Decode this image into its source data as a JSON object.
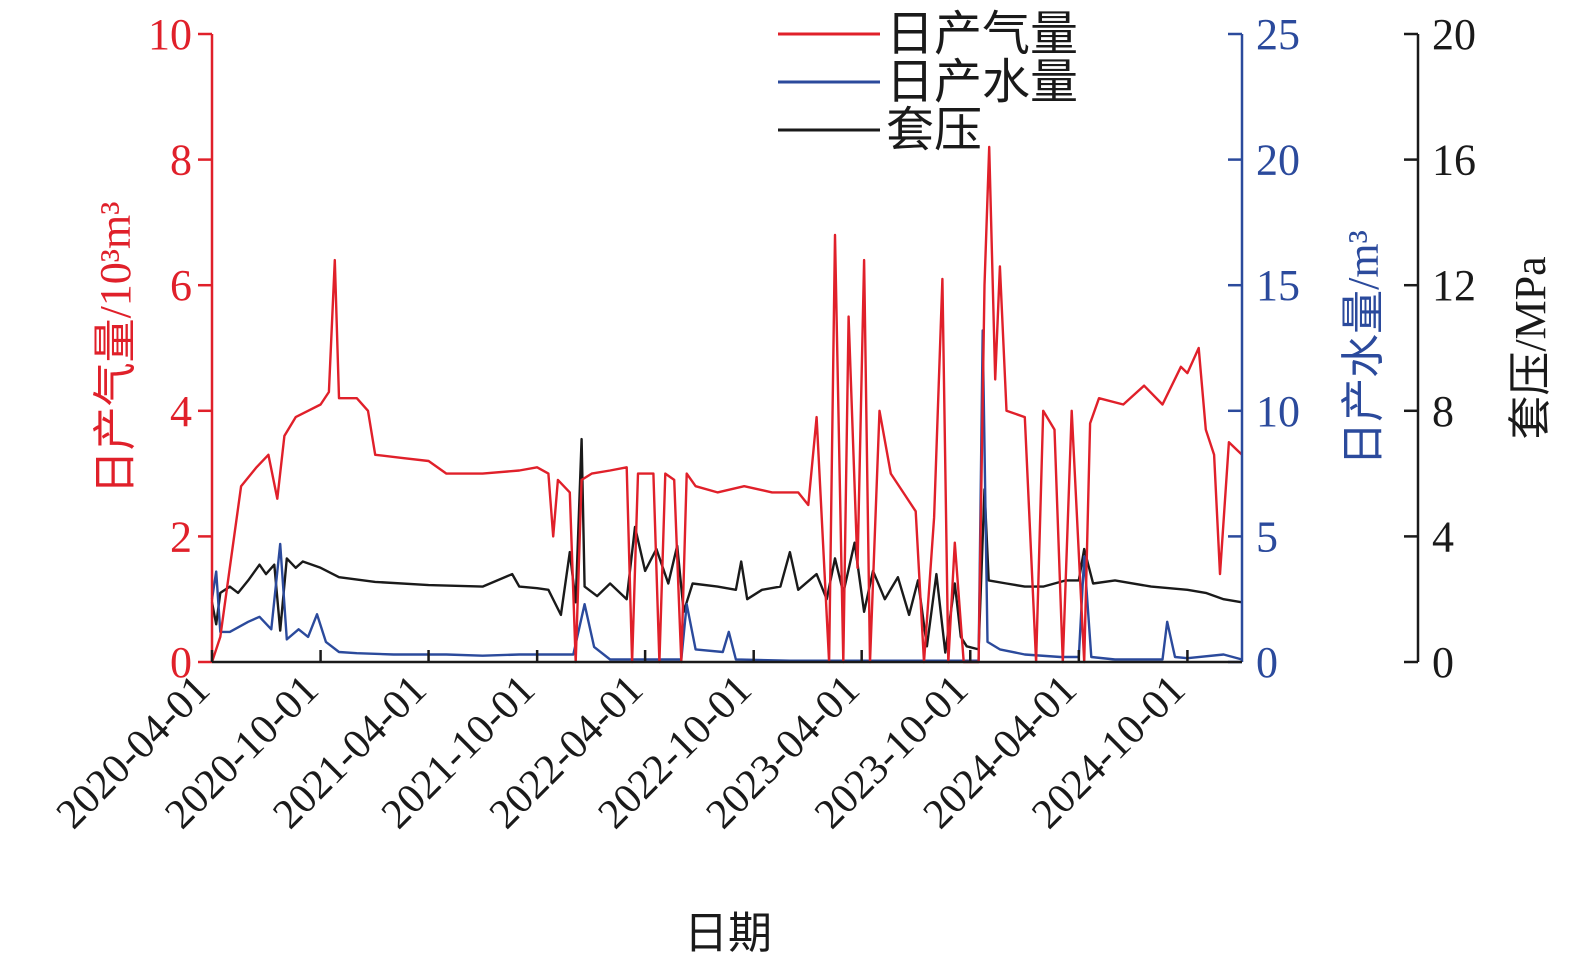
{
  "chart_data": {
    "type": "line",
    "xlabel": "日期",
    "x_ticks": [
      "2020-04-01",
      "2020-10-01",
      "2021-04-01",
      "2021-10-01",
      "2022-04-01",
      "2022-10-01",
      "2023-04-01",
      "2023-10-01",
      "2024-04-01",
      "2024-10-01"
    ],
    "x_range": [
      "2020-04-01",
      "2025-01-01"
    ],
    "axes": {
      "gas": {
        "label": "日产气量/10³m³",
        "ylim": [
          0,
          10
        ],
        "ticks": [
          "0",
          "2",
          "4",
          "6",
          "8",
          "10"
        ],
        "color": "#e0202a",
        "position": "left"
      },
      "water": {
        "label": "日产水量/m³",
        "ylim": [
          0,
          25
        ],
        "ticks": [
          "0",
          "5",
          "10",
          "15",
          "20",
          "25"
        ],
        "color": "#2b4a9c",
        "position": "right-inner"
      },
      "pressure": {
        "label": "套压/MPa",
        "ylim": [
          0,
          20
        ],
        "ticks": [
          "0",
          "4",
          "8",
          "12",
          "16",
          "20"
        ],
        "color": "#1a1a1a",
        "position": "right-outer"
      }
    },
    "legend": {
      "placement": "top-center",
      "entries": [
        "日产气量",
        "日产水量",
        "套压"
      ]
    },
    "grid": false,
    "series": [
      {
        "name": "日产气量",
        "axis": "gas",
        "color": "#e0202a",
        "points": [
          [
            "2020-04-01",
            0
          ],
          [
            "2020-04-15",
            0.4
          ],
          [
            "2020-05-01",
            1.5
          ],
          [
            "2020-05-20",
            2.8
          ],
          [
            "2020-06-15",
            3.1
          ],
          [
            "2020-07-05",
            3.3
          ],
          [
            "2020-07-20",
            2.6
          ],
          [
            "2020-08-01",
            3.6
          ],
          [
            "2020-08-20",
            3.9
          ],
          [
            "2020-09-10",
            4.0
          ],
          [
            "2020-10-01",
            4.1
          ],
          [
            "2020-10-15",
            4.3
          ],
          [
            "2020-10-25",
            6.4
          ],
          [
            "2020-11-01",
            4.2
          ],
          [
            "2020-12-01",
            4.2
          ],
          [
            "2020-12-20",
            4.0
          ],
          [
            "2021-01-01",
            3.3
          ],
          [
            "2021-02-15",
            3.25
          ],
          [
            "2021-04-01",
            3.2
          ],
          [
            "2021-05-01",
            3.0
          ],
          [
            "2021-07-01",
            3.0
          ],
          [
            "2021-09-01",
            3.05
          ],
          [
            "2021-10-01",
            3.1
          ],
          [
            "2021-10-20",
            3.0
          ],
          [
            "2021-10-28",
            2.0
          ],
          [
            "2021-11-05",
            2.9
          ],
          [
            "2021-11-25",
            2.7
          ],
          [
            "2021-12-05",
            0
          ],
          [
            "2021-12-15",
            2.9
          ],
          [
            "2022-01-01",
            3.0
          ],
          [
            "2022-02-01",
            3.05
          ],
          [
            "2022-03-01",
            3.1
          ],
          [
            "2022-03-10",
            0
          ],
          [
            "2022-03-20",
            3.0
          ],
          [
            "2022-04-15",
            3.0
          ],
          [
            "2022-04-25",
            0
          ],
          [
            "2022-05-05",
            3.0
          ],
          [
            "2022-05-20",
            2.9
          ],
          [
            "2022-06-01",
            0
          ],
          [
            "2022-06-10",
            3.0
          ],
          [
            "2022-06-25",
            2.8
          ],
          [
            "2022-08-01",
            2.7
          ],
          [
            "2022-09-15",
            2.8
          ],
          [
            "2022-11-01",
            2.7
          ],
          [
            "2022-12-15",
            2.7
          ],
          [
            "2023-01-01",
            2.5
          ],
          [
            "2023-01-15",
            3.9
          ],
          [
            "2023-02-05",
            0
          ],
          [
            "2023-02-15",
            6.8
          ],
          [
            "2023-03-01",
            0
          ],
          [
            "2023-03-10",
            5.5
          ],
          [
            "2023-03-25",
            1.5
          ],
          [
            "2023-04-05",
            6.4
          ],
          [
            "2023-04-15",
            0
          ],
          [
            "2023-05-01",
            4.0
          ],
          [
            "2023-05-20",
            3.0
          ],
          [
            "2023-06-10",
            2.7
          ],
          [
            "2023-07-01",
            2.4
          ],
          [
            "2023-07-15",
            0
          ],
          [
            "2023-08-01",
            2.3
          ],
          [
            "2023-08-15",
            6.1
          ],
          [
            "2023-08-25",
            0
          ],
          [
            "2023-09-05",
            1.9
          ],
          [
            "2023-09-20",
            0
          ],
          [
            "2023-10-15",
            0
          ],
          [
            "2023-10-25",
            6.0
          ],
          [
            "2023-11-02",
            8.2
          ],
          [
            "2023-11-12",
            4.5
          ],
          [
            "2023-11-20",
            6.3
          ],
          [
            "2023-12-01",
            4.0
          ],
          [
            "2024-01-01",
            3.9
          ],
          [
            "2024-01-20",
            0
          ],
          [
            "2024-02-01",
            4.0
          ],
          [
            "2024-02-20",
            3.7
          ],
          [
            "2024-03-05",
            0
          ],
          [
            "2024-03-20",
            4.0
          ],
          [
            "2024-04-10",
            0
          ],
          [
            "2024-04-20",
            3.8
          ],
          [
            "2024-05-05",
            4.2
          ],
          [
            "2024-06-15",
            4.1
          ],
          [
            "2024-07-20",
            4.4
          ],
          [
            "2024-08-20",
            4.1
          ],
          [
            "2024-09-20",
            4.7
          ],
          [
            "2024-10-01",
            4.6
          ],
          [
            "2024-10-20",
            5.0
          ],
          [
            "2024-11-01",
            3.7
          ],
          [
            "2024-11-15",
            3.3
          ],
          [
            "2024-11-25",
            1.4
          ],
          [
            "2024-12-10",
            3.5
          ],
          [
            "2025-01-01",
            3.3
          ]
        ]
      },
      {
        "name": "日产水量",
        "axis": "water",
        "color": "#2b4a9c",
        "points": [
          [
            "2020-04-01",
            2.5
          ],
          [
            "2020-04-08",
            3.6
          ],
          [
            "2020-04-15",
            1.2
          ],
          [
            "2020-05-01",
            1.2
          ],
          [
            "2020-06-01",
            1.6
          ],
          [
            "2020-06-20",
            1.8
          ],
          [
            "2020-07-10",
            1.3
          ],
          [
            "2020-07-25",
            4.7
          ],
          [
            "2020-08-05",
            0.9
          ],
          [
            "2020-08-25",
            1.3
          ],
          [
            "2020-09-10",
            1.0
          ],
          [
            "2020-09-25",
            1.9
          ],
          [
            "2020-10-10",
            0.8
          ],
          [
            "2020-11-01",
            0.4
          ],
          [
            "2020-12-01",
            0.35
          ],
          [
            "2021-02-01",
            0.3
          ],
          [
            "2021-05-01",
            0.3
          ],
          [
            "2021-07-01",
            0.25
          ],
          [
            "2021-09-01",
            0.3
          ],
          [
            "2021-10-01",
            0.3
          ],
          [
            "2021-12-01",
            0.3
          ],
          [
            "2021-12-20",
            2.3
          ],
          [
            "2022-01-05",
            0.6
          ],
          [
            "2022-02-01",
            0.1
          ],
          [
            "2022-06-01",
            0.1
          ],
          [
            "2022-06-10",
            2.3
          ],
          [
            "2022-06-25",
            0.5
          ],
          [
            "2022-08-10",
            0.4
          ],
          [
            "2022-08-20",
            1.2
          ],
          [
            "2022-09-01",
            0.1
          ],
          [
            "2022-12-01",
            0.05
          ],
          [
            "2023-06-01",
            0.05
          ],
          [
            "2023-10-15",
            0.05
          ],
          [
            "2023-10-22",
            13.2
          ],
          [
            "2023-10-30",
            0.8
          ],
          [
            "2023-11-20",
            0.5
          ],
          [
            "2024-01-01",
            0.3
          ],
          [
            "2024-03-01",
            0.2
          ],
          [
            "2024-04-01",
            0.2
          ],
          [
            "2024-04-10",
            4.2
          ],
          [
            "2024-04-22",
            0.2
          ],
          [
            "2024-06-01",
            0.1
          ],
          [
            "2024-08-20",
            0.1
          ],
          [
            "2024-08-28",
            1.6
          ],
          [
            "2024-09-10",
            0.2
          ],
          [
            "2024-10-01",
            0.15
          ],
          [
            "2024-12-01",
            0.3
          ],
          [
            "2025-01-01",
            0.1
          ]
        ]
      },
      {
        "name": "套压",
        "axis": "pressure",
        "color": "#1a1a1a",
        "points": [
          [
            "2020-04-01",
            1.9
          ],
          [
            "2020-04-08",
            1.2
          ],
          [
            "2020-04-15",
            2.2
          ],
          [
            "2020-05-01",
            2.4
          ],
          [
            "2020-05-15",
            2.2
          ],
          [
            "2020-06-01",
            2.6
          ],
          [
            "2020-06-20",
            3.1
          ],
          [
            "2020-07-01",
            2.8
          ],
          [
            "2020-07-15",
            3.1
          ],
          [
            "2020-07-25",
            1.0
          ],
          [
            "2020-08-05",
            3.3
          ],
          [
            "2020-08-20",
            3.0
          ],
          [
            "2020-09-01",
            3.2
          ],
          [
            "2020-10-01",
            3.0
          ],
          [
            "2020-11-01",
            2.7
          ],
          [
            "2021-01-01",
            2.55
          ],
          [
            "2021-04-01",
            2.45
          ],
          [
            "2021-07-01",
            2.4
          ],
          [
            "2021-08-20",
            2.8
          ],
          [
            "2021-09-01",
            2.4
          ],
          [
            "2021-10-01",
            2.35
          ],
          [
            "2021-10-20",
            2.3
          ],
          [
            "2021-11-10",
            1.5
          ],
          [
            "2021-11-25",
            3.5
          ],
          [
            "2021-12-05",
            1.9
          ],
          [
            "2021-12-15",
            7.1
          ],
          [
            "2021-12-20",
            2.4
          ],
          [
            "2022-01-10",
            2.1
          ],
          [
            "2022-02-01",
            2.5
          ],
          [
            "2022-03-01",
            2.0
          ],
          [
            "2022-03-15",
            4.3
          ],
          [
            "2022-04-01",
            2.9
          ],
          [
            "2022-04-20",
            3.6
          ],
          [
            "2022-05-10",
            2.5
          ],
          [
            "2022-05-25",
            3.7
          ],
          [
            "2022-06-05",
            1.6
          ],
          [
            "2022-06-20",
            2.5
          ],
          [
            "2022-08-01",
            2.4
          ],
          [
            "2022-09-01",
            2.3
          ],
          [
            "2022-09-10",
            3.2
          ],
          [
            "2022-09-20",
            2.0
          ],
          [
            "2022-10-15",
            2.3
          ],
          [
            "2022-11-15",
            2.4
          ],
          [
            "2022-12-01",
            3.5
          ],
          [
            "2022-12-15",
            2.3
          ],
          [
            "2023-01-15",
            2.8
          ],
          [
            "2023-02-01",
            2.0
          ],
          [
            "2023-02-15",
            3.3
          ],
          [
            "2023-03-01",
            2.2
          ],
          [
            "2023-03-20",
            3.8
          ],
          [
            "2023-04-05",
            1.6
          ],
          [
            "2023-04-20",
            2.9
          ],
          [
            "2023-05-10",
            2.0
          ],
          [
            "2023-06-01",
            2.7
          ],
          [
            "2023-06-20",
            1.5
          ],
          [
            "2023-07-05",
            2.6
          ],
          [
            "2023-07-20",
            0.5
          ],
          [
            "2023-08-05",
            2.8
          ],
          [
            "2023-08-20",
            0.3
          ],
          [
            "2023-09-05",
            2.5
          ],
          [
            "2023-09-15",
            0.8
          ],
          [
            "2023-09-25",
            0.5
          ],
          [
            "2023-10-15",
            0.4
          ],
          [
            "2023-10-25",
            5.5
          ],
          [
            "2023-11-01",
            2.6
          ],
          [
            "2023-12-01",
            2.5
          ],
          [
            "2024-01-01",
            2.4
          ],
          [
            "2024-02-01",
            2.4
          ],
          [
            "2024-03-10",
            2.6
          ],
          [
            "2024-04-01",
            2.6
          ],
          [
            "2024-04-10",
            3.6
          ],
          [
            "2024-04-25",
            2.5
          ],
          [
            "2024-06-01",
            2.6
          ],
          [
            "2024-08-01",
            2.4
          ],
          [
            "2024-10-01",
            2.3
          ],
          [
            "2024-11-01",
            2.2
          ],
          [
            "2024-12-01",
            2.0
          ],
          [
            "2025-01-01",
            1.9
          ]
        ]
      }
    ]
  }
}
